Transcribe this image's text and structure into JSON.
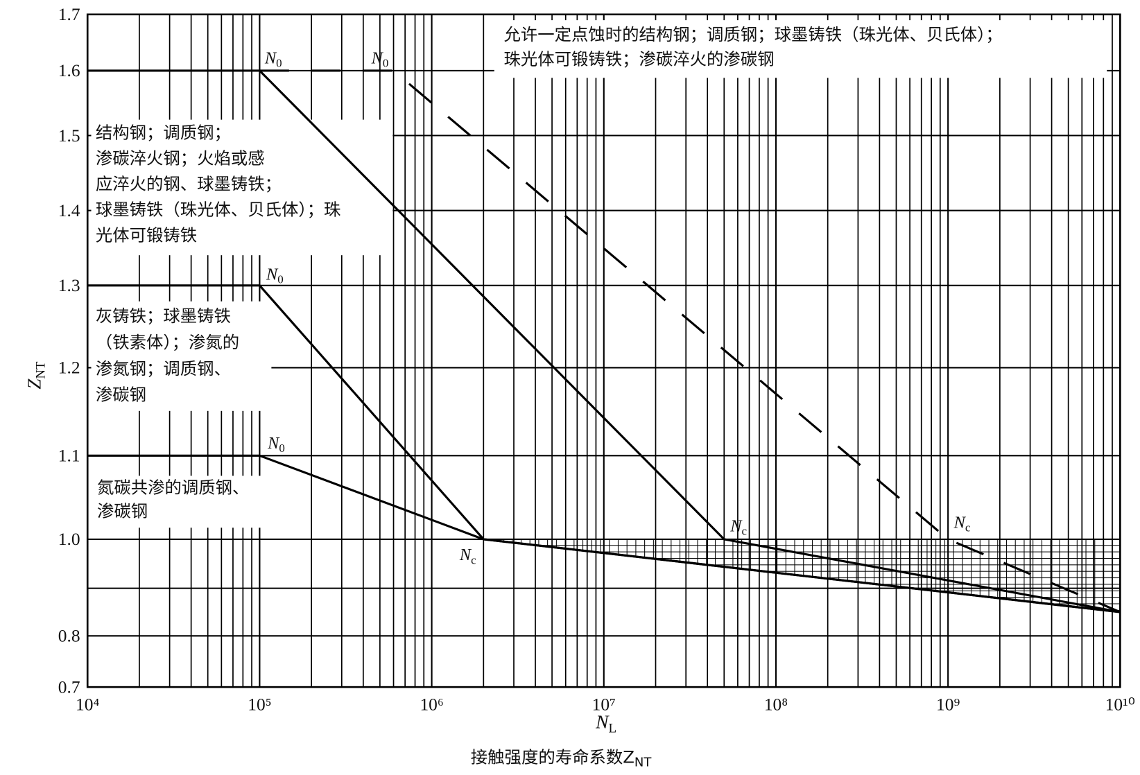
{
  "chart_data": {
    "type": "line",
    "caption": {
      "text": "接触强度的寿命系数Z",
      "sub": "NT"
    },
    "x_label": {
      "text": "N",
      "sub": "L"
    },
    "y_label": {
      "text": "Z",
      "sub": "NT"
    },
    "xscale": "log",
    "xlim": [
      10000,
      10000000000
    ],
    "xticks": [
      {
        "value": 10000,
        "label": "10⁴"
      },
      {
        "value": 100000,
        "label": "10⁵"
      },
      {
        "value": 1000000,
        "label": "10⁶"
      },
      {
        "value": 10000000,
        "label": "10⁷"
      },
      {
        "value": 100000000,
        "label": "10⁸"
      },
      {
        "value": 1000000000,
        "label": "10⁹"
      },
      {
        "value": 10000000000,
        "label": "10¹⁰"
      }
    ],
    "ylim": [
      0.7,
      1.7
    ],
    "yticks": [
      0.7,
      0.8,
      {
        "value": 0.9,
        "label": null
      },
      {
        "value": 1,
        "label": "1.0"
      },
      1.1,
      1.2,
      1.3,
      1.4,
      1.5,
      1.6,
      1.7
    ],
    "grid": true,
    "series": [
      {
        "x": [
          10000,
          100000,
          50000000,
          10000000000
        ],
        "values": [
          1.6,
          1.6,
          1.0,
          0.85
        ],
        "style": "solid",
        "color": "#000000"
      },
      {
        "x": [
          100000,
          600000,
          1000000000,
          10000000000
        ],
        "values": [
          1.6,
          1.6,
          1.0,
          0.85
        ],
        "style": "dashed",
        "color": "#000000"
      },
      {
        "x": [
          10000,
          100000,
          2000000,
          10000000000
        ],
        "values": [
          1.3,
          1.3,
          1.0,
          0.85
        ],
        "style": "solid",
        "color": "#000000"
      },
      {
        "x": [
          10000,
          100000,
          2000000,
          10000000000
        ],
        "values": [
          1.1,
          1.1,
          1.0,
          0.85
        ],
        "style": "solid",
        "color": "#000000"
      }
    ],
    "annotations": [
      {
        "text": "N",
        "sub": "0"
      },
      {
        "text": "N",
        "sub": "0"
      },
      {
        "text": "N",
        "sub": "0"
      },
      {
        "text": "N",
        "sub": "0"
      },
      {
        "text": "N",
        "sub": "c"
      },
      {
        "text": "N",
        "sub": "c"
      },
      {
        "text": "N",
        "sub": "c"
      }
    ],
    "notes": [
      {
        "lines": [
          "允许一定点蚀时的结构钢；调质钢；球墨铸铁（珠光体、贝氏体）；",
          "珠光体可锻铸铁；渗碳淬火的渗碳钢"
        ]
      },
      {
        "lines": [
          "结构钢；调质钢；",
          "渗碳淬火钢；火焰或感",
          "应淬火的钢、球墨铸铁；",
          "球墨铸铁（珠光体、贝氏体）；珠",
          "光体可锻铸铁"
        ]
      },
      {
        "lines": [
          "灰铸铁；球墨铸铁",
          "（铁素体）；渗氮的",
          "渗氮钢；调质钢、",
          "渗碳钢"
        ]
      },
      {
        "lines": [
          "氮碳共渗的调质钢、",
          "渗碳钢"
        ]
      }
    ]
  }
}
